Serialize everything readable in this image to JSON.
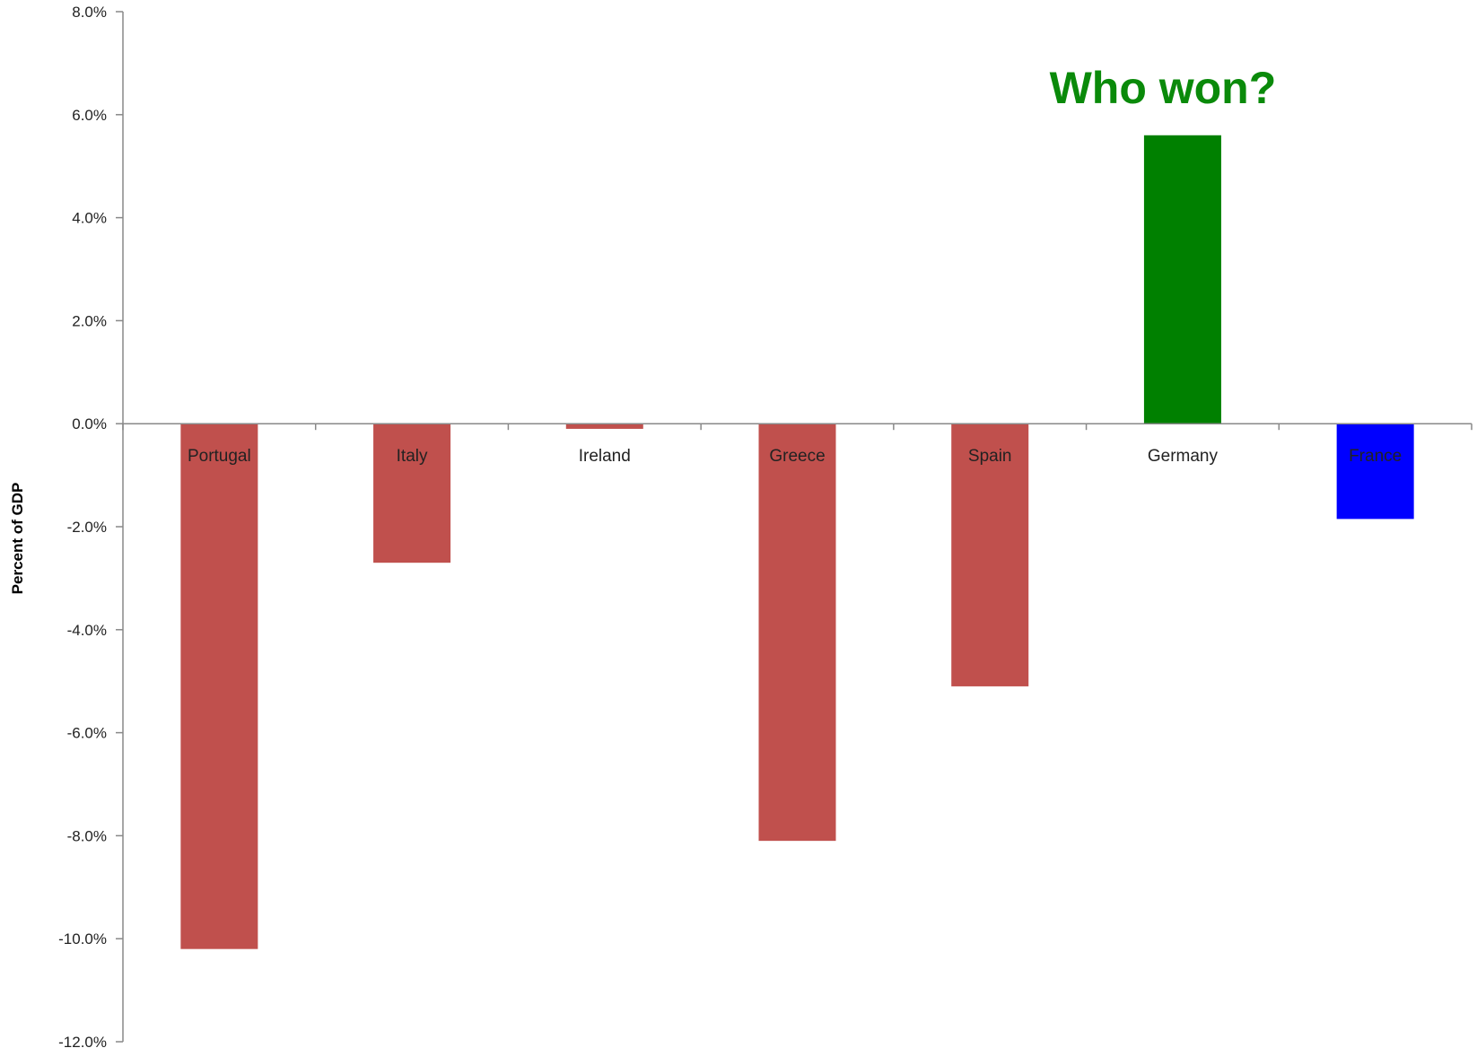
{
  "chart_data": {
    "type": "bar",
    "title": "",
    "xlabel": "",
    "ylabel": "Percent of GDP",
    "ylim": [
      -12,
      8
    ],
    "yticks": [
      8,
      6,
      4,
      2,
      0,
      -2,
      -4,
      -6,
      -8,
      -10,
      -12
    ],
    "ytick_labels": [
      "8.0%",
      "6.0%",
      "4.0%",
      "2.0%",
      "0.0%",
      "-2.0%",
      "-4.0%",
      "-6.0%",
      "-8.0%",
      "-10.0%",
      "-12.0%"
    ],
    "categories": [
      "Portugal",
      "Italy",
      "Ireland",
      "Greece",
      "Spain",
      "Germany",
      "France"
    ],
    "values": [
      -10.2,
      -2.7,
      -0.1,
      -8.1,
      -5.1,
      5.6,
      -1.85
    ],
    "bar_colors": [
      "#c0504d",
      "#c0504d",
      "#c0504d",
      "#c0504d",
      "#c0504d",
      "#008000",
      "#0000ff"
    ],
    "grid": false,
    "legend": "none",
    "annotation": {
      "text": "Who won?",
      "category": "Germany",
      "color": "#0a8a0a"
    }
  }
}
